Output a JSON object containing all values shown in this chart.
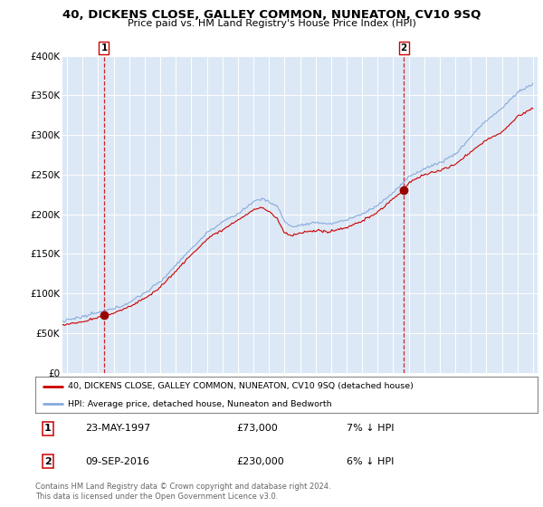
{
  "title": "40, DICKENS CLOSE, GALLEY COMMON, NUNEATON, CV10 9SQ",
  "subtitle": "Price paid vs. HM Land Registry's House Price Index (HPI)",
  "ylim": [
    0,
    400000
  ],
  "yticks": [
    0,
    50000,
    100000,
    150000,
    200000,
    250000,
    300000,
    350000,
    400000
  ],
  "ytick_labels": [
    "£0",
    "£50K",
    "£100K",
    "£150K",
    "£200K",
    "£250K",
    "£300K",
    "£350K",
    "£400K"
  ],
  "red_line_color": "#cc0000",
  "blue_line_color": "#88aadd",
  "sale1_year": 1997.38,
  "sale1_price": 73000,
  "sale1_label": "1",
  "sale1_date": "23-MAY-1997",
  "sale1_pct": "7% ↓ HPI",
  "sale2_year": 2016.68,
  "sale2_price": 230000,
  "sale2_label": "2",
  "sale2_date": "09-SEP-2016",
  "sale2_pct": "6% ↓ HPI",
  "legend_red_label": "40, DICKENS CLOSE, GALLEY COMMON, NUNEATON, CV10 9SQ (detached house)",
  "legend_blue_label": "HPI: Average price, detached house, Nuneaton and Bedworth",
  "footer": "Contains HM Land Registry data © Crown copyright and database right 2024.\nThis data is licensed under the Open Government Licence v3.0.",
  "background_color": "#ffffff",
  "plot_bg_color": "#dce8f5",
  "hpi_control_years": [
    1994.5,
    1995,
    1996,
    1997,
    1998,
    1999,
    2000,
    2001,
    2002,
    2003,
    2004,
    2005,
    2006,
    2007,
    2007.5,
    2008,
    2008.5,
    2009,
    2009.5,
    2010,
    2011,
    2012,
    2013,
    2014,
    2015,
    2016,
    2017,
    2018,
    2019,
    2020,
    2021,
    2022,
    2023,
    2024,
    2025
  ],
  "hpi_control_vals": [
    63000,
    65000,
    68000,
    73000,
    80000,
    88000,
    100000,
    115000,
    135000,
    155000,
    175000,
    190000,
    200000,
    215000,
    220000,
    215000,
    210000,
    190000,
    183000,
    185000,
    188000,
    188000,
    192000,
    200000,
    212000,
    228000,
    248000,
    260000,
    268000,
    278000,
    300000,
    320000,
    335000,
    355000,
    365000
  ],
  "red_control_years": [
    1994.5,
    1995,
    1996,
    1997,
    1997.38,
    1998,
    1999,
    2000,
    2001,
    2002,
    2003,
    2004,
    2005,
    2006,
    2007,
    2007.5,
    2008,
    2008.5,
    2009,
    2009.5,
    2010,
    2011,
    2012,
    2013,
    2014,
    2015,
    2016,
    2016.68,
    2017,
    2018,
    2019,
    2020,
    2021,
    2022,
    2023,
    2024,
    2025
  ],
  "red_control_vals": [
    60000,
    62000,
    65000,
    70000,
    73000,
    76000,
    83000,
    94000,
    108000,
    128000,
    148000,
    167000,
    180000,
    192000,
    205000,
    208000,
    202000,
    195000,
    176000,
    172000,
    175000,
    177000,
    178000,
    182000,
    191000,
    203000,
    220000,
    230000,
    240000,
    250000,
    255000,
    262000,
    280000,
    295000,
    305000,
    325000,
    335000
  ]
}
